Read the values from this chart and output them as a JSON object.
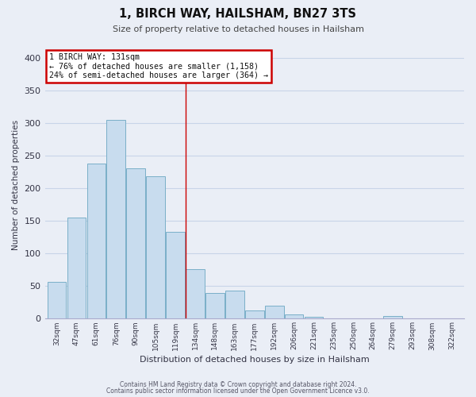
{
  "title": "1, BIRCH WAY, HAILSHAM, BN27 3TS",
  "subtitle": "Size of property relative to detached houses in Hailsham",
  "xlabel": "Distribution of detached houses by size in Hailsham",
  "ylabel": "Number of detached properties",
  "bar_labels": [
    "32sqm",
    "47sqm",
    "61sqm",
    "76sqm",
    "90sqm",
    "105sqm",
    "119sqm",
    "134sqm",
    "148sqm",
    "163sqm",
    "177sqm",
    "192sqm",
    "206sqm",
    "221sqm",
    "235sqm",
    "250sqm",
    "264sqm",
    "279sqm",
    "293sqm",
    "308sqm",
    "322sqm"
  ],
  "bar_values": [
    57,
    155,
    238,
    305,
    231,
    219,
    133,
    76,
    40,
    43,
    13,
    20,
    7,
    3,
    0,
    0,
    0,
    4,
    0,
    0,
    0
  ],
  "bar_color": "#c8dcee",
  "bar_edge_color": "#7aafc8",
  "property_line_label": "1 BIRCH WAY: 131sqm",
  "annotation_line1": "← 76% of detached houses are smaller (1,158)",
  "annotation_line2": "24% of semi-detached houses are larger (364) →",
  "annotation_box_color": "#ffffff",
  "annotation_box_edge": "#cc0000",
  "red_line_x": 7,
  "ylim": [
    0,
    410
  ],
  "grid_color": "#c8d4e8",
  "bg_color": "#eaeef6",
  "footer1": "Contains HM Land Registry data © Crown copyright and database right 2024.",
  "footer2": "Contains public sector information licensed under the Open Government Licence v3.0."
}
